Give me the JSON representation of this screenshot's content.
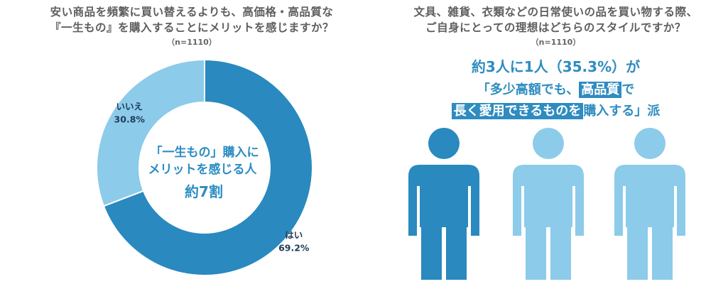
{
  "left": {
    "title_line1": "安い商品を頻繁に買い替えるよりも、高価格・高品質な",
    "title_line2": "『一生もの』を購入することにメリットを感じますか？",
    "sample": "（n=1110）",
    "center_line1": "「一生もの」購入に",
    "center_line2": "メリットを感じる人",
    "center_line3": "約7割"
  },
  "right": {
    "title_line1": "文具、雑貨、衣類などの日常使いの品を買い物する際、",
    "title_line2": "ご自身にとっての理想はどちらのスタイルですか？",
    "sample": "（n=1110）",
    "headline1": "約3人に1人（35.3%）が",
    "headline2_a": "「多少高額でも、",
    "headline2_b": "高品質",
    "headline2_c": "で",
    "headline3_a": "長く愛用できるものを",
    "headline3_b": "購入する」派",
    "figure_colors": [
      "#2a89bf",
      "#8ccbea",
      "#8ccbea"
    ]
  },
  "chart_data": {
    "type": "pie",
    "categories": [
      "はい",
      "いいえ"
    ],
    "values": [
      69.2,
      30.8
    ],
    "value_labels": [
      "69.2%",
      "30.8%"
    ],
    "colors": [
      "#2a89bf",
      "#8ccbea"
    ],
    "title": "安い商品を頻繁に買い替えるよりも、高価格・高品質な『一生もの』を購入することにメリットを感じますか？"
  }
}
